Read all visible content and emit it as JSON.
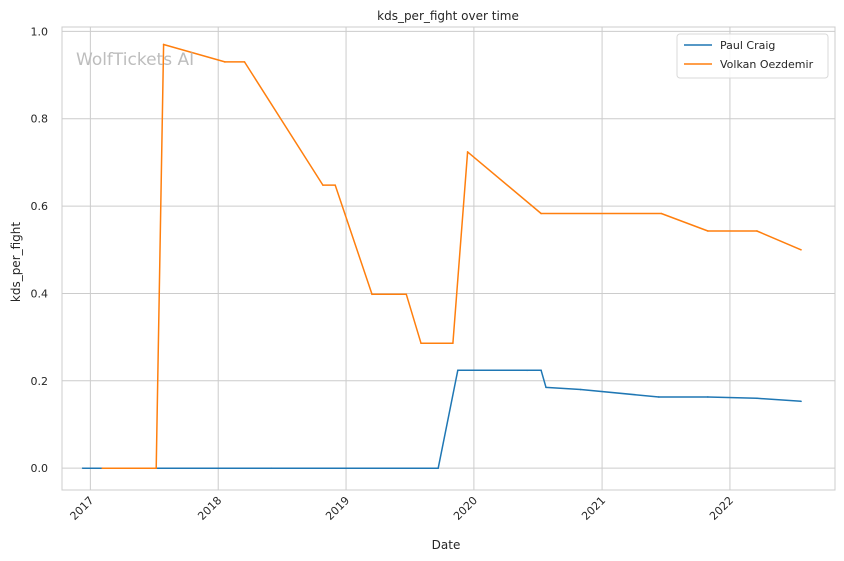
{
  "chart_data": {
    "type": "line",
    "title": "kds_per_fight over time",
    "xlabel": "Date",
    "ylabel": "kds_per_fight",
    "watermark": "WolfTickets AI",
    "xlim": [
      "2016-10-12",
      "2022-10-28"
    ],
    "ylim": [
      -0.05,
      1.01
    ],
    "x_ticks": [
      "2017",
      "2018",
      "2019",
      "2020",
      "2021",
      "2022"
    ],
    "y_ticks": [
      "0.0",
      "0.2",
      "0.4",
      "0.6",
      "0.8",
      "1.0"
    ],
    "grid": true,
    "legend_position": "top-right",
    "series": [
      {
        "name": "Paul Craig",
        "color": "#1f77b4",
        "points": [
          [
            "2016-12-10",
            0.0
          ],
          [
            "2017-07-16",
            0.0
          ],
          [
            "2018-06-01",
            0.0
          ],
          [
            "2019-09-21",
            0.0
          ],
          [
            "2019-11-16",
            0.224
          ],
          [
            "2020-06-01",
            0.224
          ],
          [
            "2020-07-11",
            0.224
          ],
          [
            "2020-07-25",
            0.185
          ],
          [
            "2020-11-01",
            0.18
          ],
          [
            "2021-06-12",
            0.163
          ],
          [
            "2021-10-30",
            0.163
          ],
          [
            "2022-03-19",
            0.16
          ],
          [
            "2022-07-23",
            0.153
          ]
        ]
      },
      {
        "name": "Volkan Oezdemir",
        "color": "#ff7f0e",
        "points": [
          [
            "2017-02-04",
            0.0
          ],
          [
            "2017-07-08",
            0.0
          ],
          [
            "2017-07-29",
            0.97
          ],
          [
            "2018-01-20",
            0.93
          ],
          [
            "2018-03-17",
            0.93
          ],
          [
            "2018-10-27",
            0.648
          ],
          [
            "2018-12-01",
            0.648
          ],
          [
            "2019-03-16",
            0.398
          ],
          [
            "2019-06-22",
            0.398
          ],
          [
            "2019-08-03",
            0.286
          ],
          [
            "2019-11-02",
            0.286
          ],
          [
            "2019-12-14",
            0.724
          ],
          [
            "2020-07-11",
            0.583
          ],
          [
            "2021-06-19",
            0.583
          ],
          [
            "2021-10-30",
            0.543
          ],
          [
            "2022-03-19",
            0.543
          ],
          [
            "2022-07-23",
            0.5
          ]
        ]
      }
    ]
  }
}
